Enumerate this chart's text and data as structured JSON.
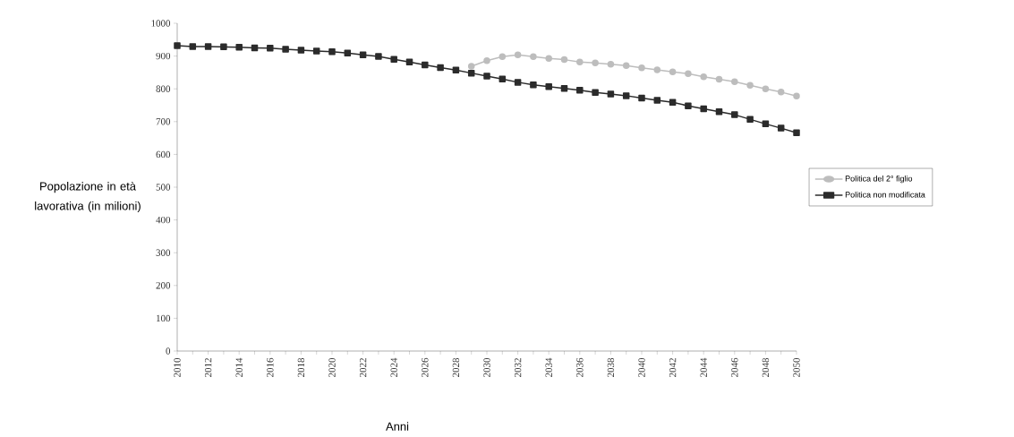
{
  "chart_data": {
    "type": "line",
    "ylabel": "Popolazione in età lavorativa (in milioni)",
    "xlabel": "Anni",
    "x": [
      2010,
      2011,
      2012,
      2013,
      2014,
      2015,
      2016,
      2017,
      2018,
      2019,
      2020,
      2021,
      2022,
      2023,
      2024,
      2025,
      2026,
      2027,
      2028,
      2029,
      2030,
      2031,
      2032,
      2033,
      2034,
      2035,
      2036,
      2037,
      2038,
      2039,
      2040,
      2041,
      2042,
      2043,
      2044,
      2045,
      2046,
      2047,
      2048,
      2049,
      2050
    ],
    "series": [
      {
        "name": "Politica del 2° figlio",
        "color": "#bdbdbd",
        "marker": "circle",
        "values": [
          null,
          null,
          null,
          null,
          null,
          null,
          null,
          null,
          null,
          null,
          null,
          null,
          null,
          null,
          null,
          null,
          null,
          null,
          null,
          869,
          886,
          898,
          904,
          898,
          893,
          889,
          882,
          879,
          875,
          871,
          864,
          858,
          852,
          846,
          837,
          829,
          822,
          811,
          800,
          790,
          778
        ]
      },
      {
        "name": "Politica non modificata",
        "color": "#2b2b2b",
        "marker": "square",
        "values": [
          932,
          929,
          929,
          928,
          927,
          925,
          924,
          921,
          918,
          915,
          913,
          909,
          904,
          899,
          890,
          882,
          873,
          865,
          857,
          848,
          839,
          830,
          820,
          812,
          807,
          801,
          796,
          789,
          784,
          779,
          772,
          765,
          759,
          748,
          739,
          730,
          721,
          707,
          693,
          680,
          666
        ]
      }
    ],
    "xlim": [
      2010,
      2050
    ],
    "xticks": [
      {
        "value": 2010,
        "label": "2010"
      },
      {
        "value": 2011,
        "label": null
      },
      {
        "value": 2012,
        "label": "2012"
      },
      {
        "value": 2013,
        "label": null
      },
      {
        "value": 2014,
        "label": "2014"
      },
      {
        "value": 2015,
        "label": null
      },
      {
        "value": 2016,
        "label": "2016"
      },
      {
        "value": 2017,
        "label": null
      },
      {
        "value": 2018,
        "label": "2018"
      },
      {
        "value": 2019,
        "label": null
      },
      {
        "value": 2020,
        "label": "2020"
      },
      {
        "value": 2021,
        "label": null
      },
      {
        "value": 2022,
        "label": "2022"
      },
      {
        "value": 2023,
        "label": null
      },
      {
        "value": 2024,
        "label": "2024"
      },
      {
        "value": 2025,
        "label": null
      },
      {
        "value": 2026,
        "label": "2026"
      },
      {
        "value": 2027,
        "label": null
      },
      {
        "value": 2028,
        "label": "2028"
      },
      {
        "value": 2029,
        "label": null
      },
      {
        "value": 2030,
        "label": "2030"
      },
      {
        "value": 2031,
        "label": null
      },
      {
        "value": 2032,
        "label": "2032"
      },
      {
        "value": 2033,
        "label": null
      },
      {
        "value": 2034,
        "label": "2034"
      },
      {
        "value": 2035,
        "label": null
      },
      {
        "value": 2036,
        "label": "2036"
      },
      {
        "value": 2037,
        "label": null
      },
      {
        "value": 2038,
        "label": "2038"
      },
      {
        "value": 2039,
        "label": null
      },
      {
        "value": 2040,
        "label": "2040"
      },
      {
        "value": 2041,
        "label": null
      },
      {
        "value": 2042,
        "label": "2042"
      },
      {
        "value": 2043,
        "label": null
      },
      {
        "value": 2044,
        "label": "2044"
      },
      {
        "value": 2045,
        "label": null
      },
      {
        "value": 2046,
        "label": "2046"
      },
      {
        "value": 2047,
        "label": null
      },
      {
        "value": 2048,
        "label": "2048"
      },
      {
        "value": 2049,
        "label": null
      },
      {
        "value": 2050,
        "label": "2050"
      }
    ],
    "ylim": [
      0,
      1000
    ],
    "yticks": [
      0,
      100,
      200,
      300,
      400,
      500,
      600,
      700,
      800,
      900,
      1000
    ],
    "legend": "right",
    "grid": false,
    "line_style": "solid"
  }
}
